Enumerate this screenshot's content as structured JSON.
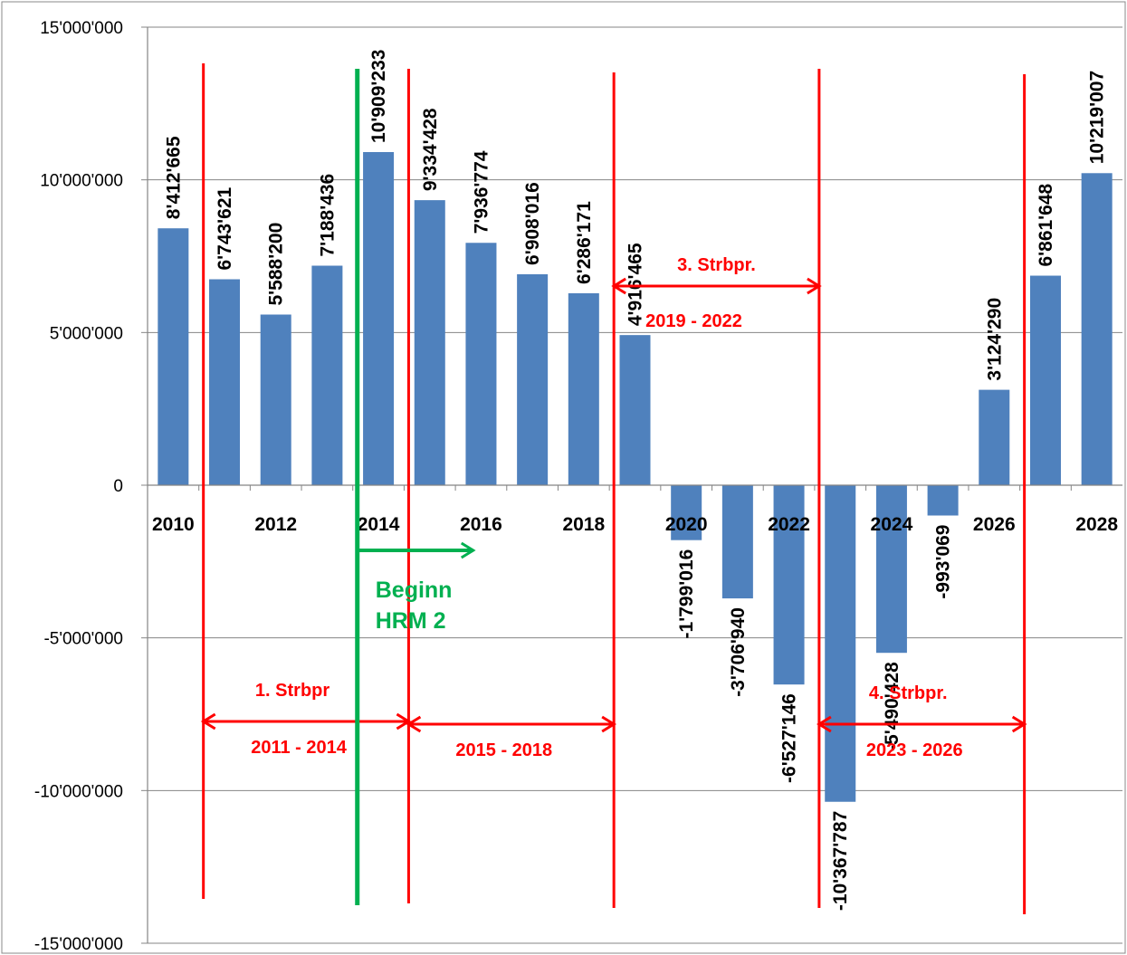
{
  "chart_data": {
    "type": "bar",
    "x": [
      2010,
      2011,
      2012,
      2013,
      2014,
      2015,
      2016,
      2017,
      2018,
      2019,
      2020,
      2021,
      2022,
      2023,
      2024,
      2025,
      2026,
      2027,
      2028
    ],
    "xtick_labels": [
      "2010",
      "2012",
      "2014",
      "2016",
      "2018",
      "2020",
      "2022",
      "2024",
      "2026",
      "2028"
    ],
    "values": [
      8412665,
      6743621,
      5588200,
      7188436,
      10909233,
      9334428,
      7936774,
      6908016,
      6286171,
      4916465,
      -1799016,
      -3706940,
      -6527146,
      -10367787,
      -5490428,
      -993069,
      3124290,
      6861648,
      10219007
    ],
    "data_labels": [
      "8'412'665",
      "6'743'621",
      "5'588'200",
      "7'188'436",
      "10'909'233",
      "9'334'428",
      "7'936'774",
      "6'908'016",
      "6'286'171",
      "4'916'465",
      "-1'799'016",
      "-3'706'940",
      "-6'527'146",
      "-10'367'787",
      "-5'490'428",
      "-993'069",
      "3'124'290",
      "6'861'648",
      "10'219'007"
    ],
    "ylim": [
      -15000000,
      15000000
    ],
    "ytick_values": [
      15000000,
      10000000,
      5000000,
      0,
      -5000000,
      -10000000,
      -15000000
    ],
    "ytick_labels": [
      "15'000'000",
      "10'000'000",
      "5'000'000",
      "0",
      "-5'000'000",
      "-10'000'000",
      "-15'000'000"
    ],
    "grid": true,
    "title": "",
    "xlabel": "",
    "ylabel": "",
    "bar_color": "#4f81bd",
    "annotations": {
      "period_color": "#ff0000",
      "hrm_color": "#00b050",
      "periods": [
        {
          "name": "1. Strbpr",
          "range": "2011 - 2014",
          "from": 2010.5,
          "to": 2014.5
        },
        {
          "name": "",
          "range": "2015 - 2018",
          "from": 2014.5,
          "to": 2018.5
        },
        {
          "name": "3. Strbpr.",
          "range": "2019 - 2022",
          "from": 2018.5,
          "to": 2022.5
        },
        {
          "name": "4. Strbpr.",
          "range": "2023 - 2026",
          "from": 2022.5,
          "to": 2026.5
        }
      ],
      "hrm": {
        "text_lines": [
          "Beginn",
          "HRM 2"
        ],
        "year": 2013.5
      }
    }
  }
}
